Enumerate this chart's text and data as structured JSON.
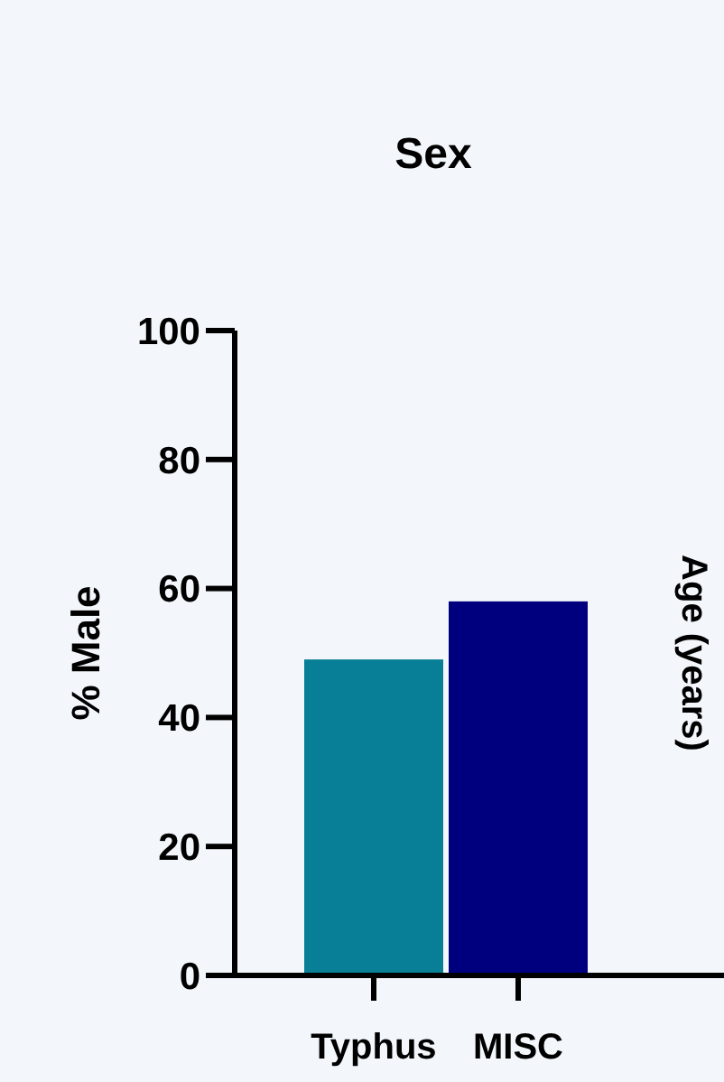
{
  "chart_data": {
    "type": "bar",
    "title": "Sex",
    "ylabel": "% Male",
    "categories": [
      "Typhus",
      "MISC"
    ],
    "values": [
      49,
      58
    ],
    "colors": [
      "#087f96",
      "#00007f"
    ],
    "ylim": [
      0,
      100
    ],
    "yticks": [
      0,
      20,
      40,
      60,
      80,
      100
    ],
    "grid": false,
    "annotations": [
      "Age (years)"
    ]
  }
}
